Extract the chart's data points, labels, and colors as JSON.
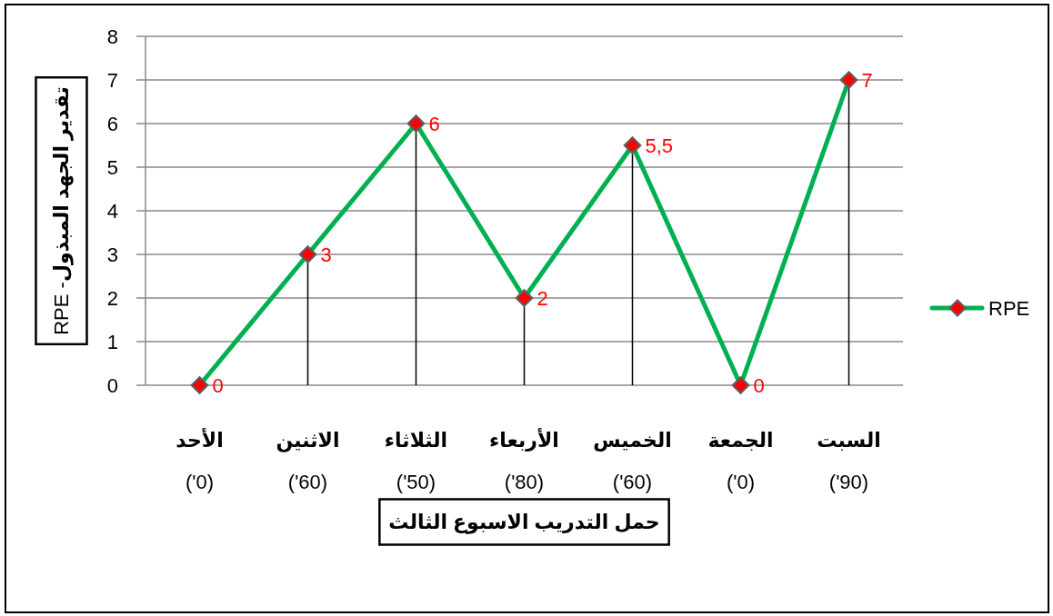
{
  "chart_data": {
    "type": "line",
    "xlabel": "حمل التدريب الاسبوع الثالث",
    "ylabel": "تقدير الجهد المبذول- RPE",
    "categories": [
      "الأحد (0')",
      "الاثنين (60')",
      "الثلاثاء (50')",
      "الأربعاء (80')",
      "الخميس (60')",
      "الجمعة (0')",
      "السبت (90')"
    ],
    "series": [
      {
        "name": "RPE",
        "color": "#00b050",
        "colors": [
          "#ff0000",
          "#ff0000",
          "#ff0000",
          "#ff0000",
          "#ff0000",
          "#ff0000",
          "#ff0000"
        ],
        "marker": "diamond",
        "values": [
          0,
          3,
          6,
          2,
          5.5,
          0,
          7
        ],
        "value_labels": [
          "0",
          "3",
          "6",
          "2",
          "5,5",
          "0",
          "7"
        ]
      },
      {
        "type": "lollipop",
        "color": "#000000",
        "colors": [
          "#ff0000",
          "#ff0000",
          "#ff0000",
          "#ff0000",
          "#ff0000",
          "#ff0000",
          "#ff0000"
        ],
        "marker": "diamond",
        "values": [
          0,
          3,
          6,
          2,
          5.5,
          0,
          7
        ]
      }
    ],
    "ylim": [
      0,
      8
    ],
    "yticks": [
      0,
      1,
      2,
      3,
      4,
      5,
      6,
      7,
      8
    ],
    "grid": "y",
    "legend": "right"
  }
}
